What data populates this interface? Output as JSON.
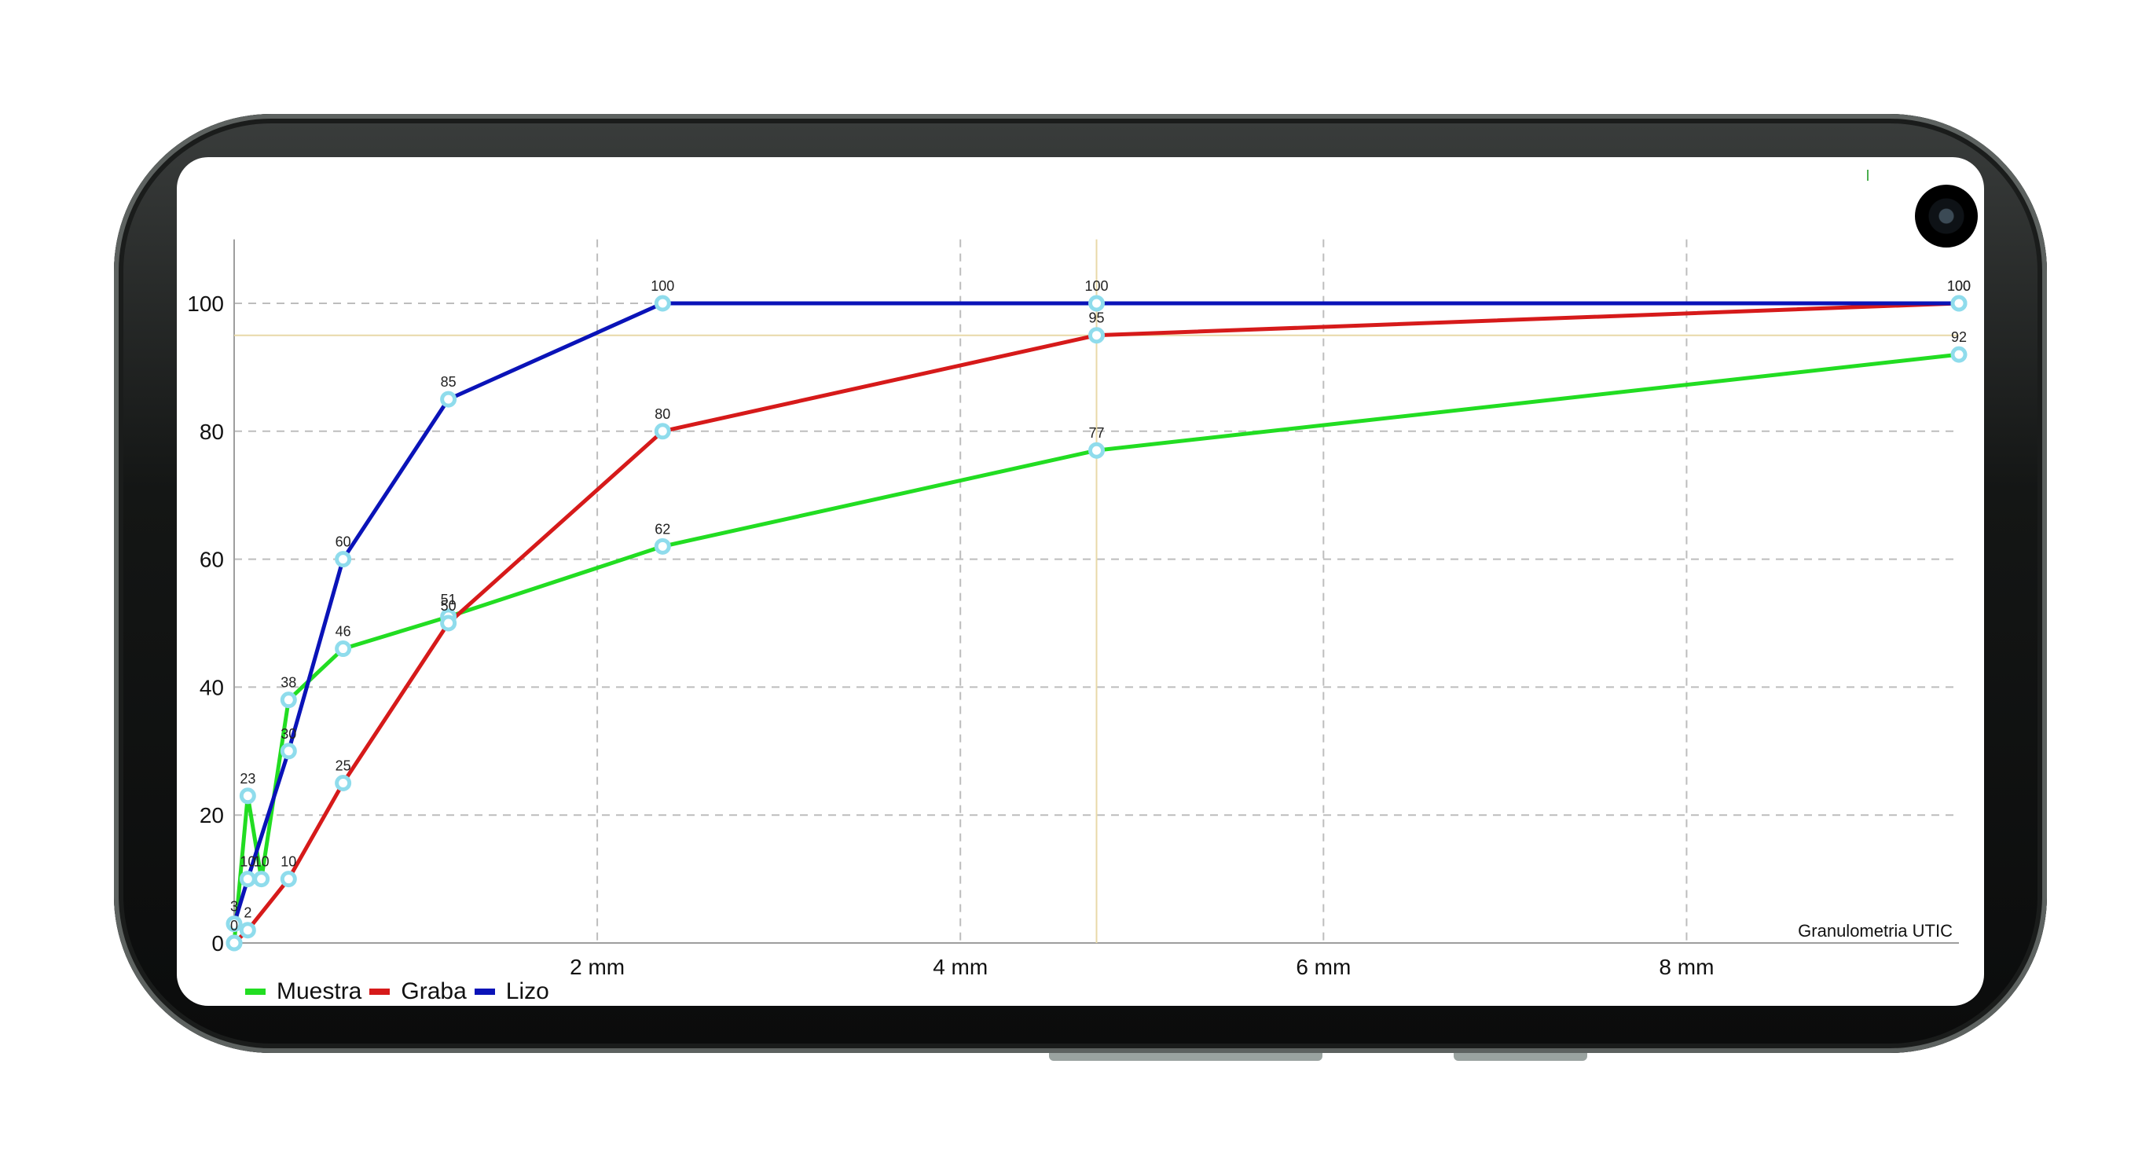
{
  "chart_data": {
    "type": "line",
    "title": "",
    "xlabel": "",
    "ylabel": "",
    "watermark": "Granulometria UTIC",
    "xlim": [
      0,
      9.5
    ],
    "ylim": [
      0,
      110
    ],
    "x_ticks": [
      {
        "value": 2,
        "label": "2 mm"
      },
      {
        "value": 4,
        "label": "4 mm"
      },
      {
        "value": 6,
        "label": "6 mm"
      },
      {
        "value": 8,
        "label": "8 mm"
      }
    ],
    "y_ticks": [
      0,
      20,
      40,
      60,
      80,
      100
    ],
    "grid": true,
    "legend_position": "bottom-left",
    "reference_lines": {
      "horizontal": 95,
      "vertical": 4.75
    },
    "series": [
      {
        "name": "Muestra",
        "color": "#22dd22",
        "points": [
          [
            0,
            0
          ],
          [
            0.075,
            23
          ],
          [
            0.15,
            10
          ],
          [
            0.3,
            38
          ],
          [
            0.6,
            46
          ],
          [
            1.18,
            51
          ],
          [
            2.36,
            62
          ],
          [
            4.75,
            77
          ],
          [
            9.5,
            92
          ]
        ],
        "labels": [
          "0",
          "23",
          "10",
          "38",
          "46",
          "51",
          "62",
          "77",
          "92"
        ]
      },
      {
        "name": "Graba",
        "color": "#d61a1a",
        "points": [
          [
            0,
            0
          ],
          [
            0.075,
            2
          ],
          [
            0.3,
            10
          ],
          [
            0.6,
            25
          ],
          [
            1.18,
            50
          ],
          [
            2.36,
            80
          ],
          [
            4.75,
            95
          ],
          [
            9.5,
            100
          ]
        ],
        "labels": [
          "",
          "2",
          "10",
          "25",
          "50",
          "80",
          "95",
          "100"
        ]
      },
      {
        "name": "Lizo",
        "color": "#0a13b8",
        "points": [
          [
            0,
            3
          ],
          [
            0.075,
            10
          ],
          [
            0.3,
            30
          ],
          [
            0.6,
            60
          ],
          [
            1.18,
            85
          ],
          [
            2.36,
            100
          ],
          [
            4.75,
            100
          ],
          [
            9.5,
            100
          ]
        ],
        "labels": [
          "3",
          "10",
          "30",
          "60",
          "85",
          "100",
          "100",
          "100"
        ]
      }
    ]
  }
}
